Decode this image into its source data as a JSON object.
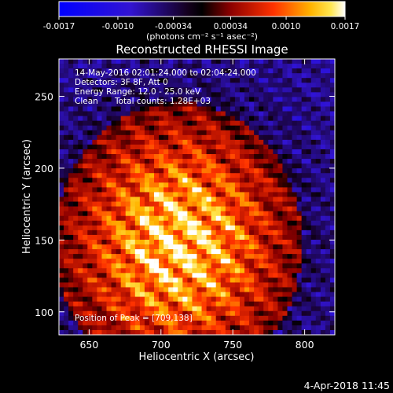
{
  "chart_data": {
    "type": "heatmap",
    "title": "Reconstructed RHESSI Image",
    "xlabel": "Heliocentric X (arcsec)",
    "ylabel": "Heliocentric Y (arcsec)",
    "xlim": [
      629,
      821
    ],
    "ylim": [
      84,
      276
    ],
    "xticks": [
      650,
      700,
      750,
      800
    ],
    "yticks": [
      100,
      150,
      200,
      250
    ],
    "colorbar": {
      "min": -0.0017,
      "max": 0.0017,
      "ticks": [
        -0.0017,
        -0.001,
        -0.00034,
        0.00034,
        0.001,
        0.0017
      ],
      "tick_labels": [
        "-0.0017",
        "-0.0010",
        "-0.00034",
        "0.00034",
        "0.0010",
        "0.0017"
      ],
      "unit_label": "(photons cm⁻² s⁻¹ asec⁻²)",
      "colormap": "blue-purple-black-red-yellow-white"
    },
    "annotations": [
      "14-May-2016 02:01:24.000 to 02:04:24.000",
      "Detectors: 3F 8F, Att 0",
      "Energy Range: 12.0 - 25.0 keV",
      "Clean",
      "Total counts: 1.28E+03"
    ],
    "peak": {
      "label": "Position of Peak = [709,138]",
      "x": 709,
      "y": 138
    },
    "source_center": {
      "x": 712,
      "y": 148
    },
    "source_radius": {
      "x": 75,
      "y": 85
    },
    "grid": false
  },
  "footer": {
    "timestamp": "4-Apr-2018 11:45"
  },
  "colors": {
    "background": "#000000",
    "text": "#ffffff"
  }
}
